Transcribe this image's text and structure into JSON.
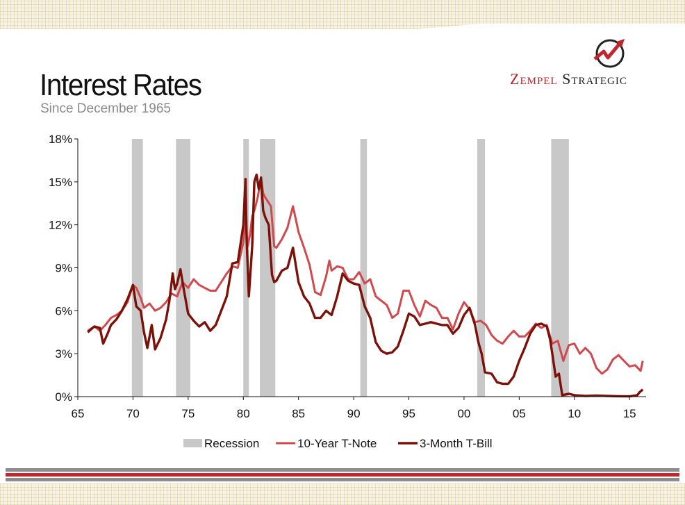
{
  "header": {
    "title": "Interest Rates",
    "subtitle": "Since December 1965",
    "brand_part1": "Zempel",
    "brand_part2": "Strategic",
    "logo_icon": "zigzag-arrow-circle-icon"
  },
  "colors": {
    "recession": "#c8c8c8",
    "ten_year": "#d0494e",
    "three_month": "#7b1108",
    "brand_red": "#b5232a"
  },
  "chart_data": {
    "type": "line",
    "title": "Interest Rates",
    "subtitle": "Since December 1965",
    "xlabel": "",
    "ylabel": "",
    "xlim": [
      1965,
      2016.5
    ],
    "ylim": [
      0,
      18
    ],
    "x_ticks": [
      1965,
      1970,
      1975,
      1980,
      1985,
      1990,
      1995,
      2000,
      2005,
      2010,
      2015
    ],
    "x_tick_labels": [
      "65",
      "70",
      "75",
      "80",
      "85",
      "90",
      "95",
      "00",
      "05",
      "10",
      "15"
    ],
    "y_ticks": [
      0,
      3,
      6,
      9,
      12,
      15,
      18
    ],
    "y_tick_labels": [
      "0%",
      "3%",
      "6%",
      "9%",
      "12%",
      "15%",
      "18%"
    ],
    "grid": false,
    "legend_position": "bottom",
    "legend": [
      "Recession",
      "10-Year T-Note",
      "3-Month T-Bill"
    ],
    "recessions": [
      {
        "start": 1969.9,
        "end": 1970.9
      },
      {
        "start": 1973.9,
        "end": 1975.2
      },
      {
        "start": 1980.0,
        "end": 1980.5
      },
      {
        "start": 1981.5,
        "end": 1982.9
      },
      {
        "start": 1990.6,
        "end": 1991.2
      },
      {
        "start": 2001.2,
        "end": 2001.9
      },
      {
        "start": 2007.9,
        "end": 2009.5
      }
    ],
    "series": [
      {
        "name": "10-Year T-Note",
        "x": [
          1965.9,
          1966.5,
          1967.0,
          1967.5,
          1968.0,
          1968.5,
          1969.0,
          1969.5,
          1970.0,
          1970.3,
          1970.7,
          1971.0,
          1971.5,
          1972.0,
          1972.5,
          1973.0,
          1973.5,
          1974.0,
          1974.5,
          1975.0,
          1975.5,
          1976.0,
          1976.5,
          1977.0,
          1977.5,
          1978.0,
          1978.5,
          1979.0,
          1979.5,
          1980.0,
          1980.2,
          1980.4,
          1980.6,
          1980.8,
          1981.0,
          1981.3,
          1981.6,
          1981.8,
          1982.0,
          1982.5,
          1982.8,
          1983.0,
          1983.5,
          1984.0,
          1984.5,
          1985.0,
          1985.5,
          1986.0,
          1986.5,
          1987.0,
          1987.5,
          1987.8,
          1988.0,
          1988.5,
          1989.0,
          1989.5,
          1990.0,
          1990.5,
          1991.0,
          1991.5,
          1992.0,
          1992.5,
          1993.0,
          1993.5,
          1994.0,
          1994.5,
          1995.0,
          1995.5,
          1996.0,
          1996.5,
          1997.0,
          1997.5,
          1998.0,
          1998.5,
          1999.0,
          1999.5,
          2000.0,
          2000.5,
          2001.0,
          2001.5,
          2002.0,
          2002.5,
          2003.0,
          2003.5,
          2004.0,
          2004.5,
          2005.0,
          2005.5,
          2006.0,
          2006.5,
          2007.0,
          2007.5,
          2008.0,
          2008.5,
          2009.0,
          2009.5,
          2010.0,
          2010.5,
          2011.0,
          2011.5,
          2012.0,
          2012.5,
          2013.0,
          2013.5,
          2014.0,
          2014.5,
          2015.0,
          2015.5,
          2016.0,
          2016.2
        ],
        "values": [
          4.6,
          4.9,
          4.6,
          5.0,
          5.5,
          5.7,
          6.0,
          6.6,
          7.8,
          7.6,
          6.9,
          6.2,
          6.5,
          6.0,
          6.2,
          6.6,
          7.2,
          7.0,
          8.0,
          7.6,
          8.2,
          7.8,
          7.6,
          7.4,
          7.4,
          8.0,
          8.6,
          9.1,
          9.0,
          10.8,
          12.4,
          10.5,
          11.3,
          12.6,
          13.0,
          13.9,
          15.3,
          14.2,
          13.9,
          13.3,
          10.5,
          10.4,
          11.0,
          11.8,
          13.3,
          11.5,
          10.4,
          9.2,
          7.3,
          7.1,
          8.4,
          9.5,
          8.8,
          9.1,
          9.0,
          8.2,
          8.2,
          8.7,
          7.9,
          8.2,
          7.0,
          6.7,
          6.4,
          5.5,
          5.8,
          7.4,
          7.4,
          6.4,
          5.6,
          6.7,
          6.4,
          6.2,
          5.5,
          5.5,
          4.7,
          5.8,
          6.6,
          6.1,
          5.2,
          5.3,
          5.0,
          4.3,
          3.9,
          3.7,
          4.2,
          4.6,
          4.2,
          4.2,
          4.6,
          5.1,
          4.8,
          5.0,
          3.7,
          3.9,
          2.5,
          3.6,
          3.7,
          3.0,
          3.4,
          3.0,
          2.0,
          1.6,
          1.9,
          2.6,
          2.9,
          2.5,
          2.1,
          2.2,
          1.8,
          2.5
        ]
      },
      {
        "name": "3-Month T-Bill",
        "x": [
          1965.9,
          1966.5,
          1967.0,
          1967.3,
          1967.7,
          1968.0,
          1968.5,
          1969.0,
          1969.5,
          1970.0,
          1970.3,
          1970.7,
          1971.0,
          1971.3,
          1971.7,
          1972.0,
          1972.5,
          1973.0,
          1973.3,
          1973.6,
          1973.8,
          1974.0,
          1974.3,
          1974.6,
          1975.0,
          1975.5,
          1976.0,
          1976.5,
          1977.0,
          1977.5,
          1978.0,
          1978.5,
          1979.0,
          1979.5,
          1980.0,
          1980.2,
          1980.3,
          1980.5,
          1980.8,
          1981.0,
          1981.2,
          1981.4,
          1981.6,
          1981.8,
          1982.0,
          1982.3,
          1982.6,
          1982.8,
          1983.0,
          1983.5,
          1984.0,
          1984.5,
          1985.0,
          1985.5,
          1986.0,
          1986.5,
          1987.0,
          1987.5,
          1988.0,
          1988.5,
          1989.0,
          1989.5,
          1990.0,
          1990.5,
          1991.0,
          1991.5,
          1992.0,
          1992.5,
          1993.0,
          1993.5,
          1994.0,
          1994.5,
          1995.0,
          1995.5,
          1996.0,
          1996.5,
          1997.0,
          1997.5,
          1998.0,
          1998.5,
          1999.0,
          1999.5,
          2000.0,
          2000.5,
          2001.0,
          2001.3,
          2001.6,
          2001.9,
          2002.5,
          2003.0,
          2003.5,
          2004.0,
          2004.5,
          2005.0,
          2005.5,
          2006.0,
          2006.5,
          2007.0,
          2007.5,
          2007.8,
          2008.0,
          2008.3,
          2008.6,
          2008.9,
          2009.5,
          2010.0,
          2011.0,
          2012.0,
          2013.0,
          2014.0,
          2015.0,
          2015.7,
          2015.9,
          2016.2
        ],
        "values": [
          4.5,
          4.9,
          4.8,
          3.7,
          4.4,
          5.0,
          5.4,
          6.0,
          6.8,
          7.8,
          6.3,
          6.0,
          4.5,
          3.4,
          5.0,
          3.3,
          4.1,
          5.4,
          6.7,
          8.6,
          7.5,
          7.9,
          8.9,
          7.5,
          5.8,
          5.3,
          4.9,
          5.2,
          4.6,
          5.0,
          6.0,
          7.0,
          9.3,
          9.4,
          12.0,
          15.2,
          11.0,
          7.0,
          10.5,
          15.0,
          15.5,
          14.5,
          15.3,
          13.0,
          12.5,
          12.0,
          8.5,
          8.0,
          8.1,
          8.8,
          9.0,
          10.4,
          8.0,
          7.0,
          6.5,
          5.5,
          5.5,
          6.0,
          5.7,
          7.0,
          8.6,
          8.1,
          7.9,
          7.8,
          6.3,
          5.5,
          3.8,
          3.2,
          3.0,
          3.1,
          3.5,
          4.6,
          5.8,
          5.6,
          5.0,
          5.1,
          5.2,
          5.1,
          5.0,
          5.0,
          4.4,
          4.8,
          5.7,
          6.2,
          5.0,
          3.8,
          3.0,
          1.7,
          1.6,
          1.0,
          0.9,
          0.9,
          1.4,
          2.5,
          3.4,
          4.4,
          5.0,
          5.1,
          4.9,
          4.0,
          3.0,
          1.4,
          1.6,
          0.1,
          0.2,
          0.1,
          0.05,
          0.08,
          0.05,
          0.03,
          0.02,
          0.1,
          0.3,
          0.5
        ]
      }
    ]
  }
}
